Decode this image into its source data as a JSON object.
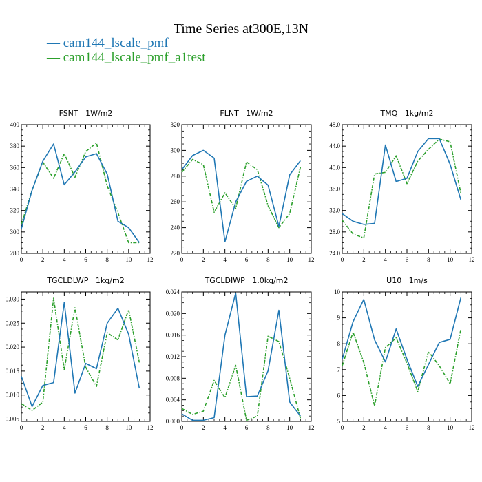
{
  "figure": {
    "title": "Time Series at300E,13N",
    "legend": [
      {
        "label": "— cam144_lscale_pmf",
        "color": "#1f77b4"
      },
      {
        "label": "— cam144_lscale_pmf_a1test",
        "color": "#2ca02c"
      }
    ]
  },
  "chart_data": [
    {
      "type": "line",
      "title": "FSNT   1W/m2",
      "x": [
        0,
        1,
        2,
        3,
        4,
        5,
        6,
        7,
        8,
        9,
        10,
        11
      ],
      "xlim": [
        0,
        12
      ],
      "xticks": [
        "0",
        "2",
        "4",
        "6",
        "8",
        "10",
        "12"
      ],
      "ylim": [
        280,
        400
      ],
      "yticks": [
        "280",
        "300",
        "320",
        "340",
        "360",
        "380",
        "400"
      ],
      "series": [
        {
          "name": "cam144_lscale_pmf",
          "color": "#1f77b4",
          "values": [
            303,
            339,
            366,
            382,
            344,
            356,
            370,
            373,
            354,
            310,
            304,
            290
          ]
        },
        {
          "name": "cam144_lscale_pmf_a1test",
          "color": "#2ca02c",
          "dashed": true,
          "values": [
            307,
            339,
            365,
            350,
            373,
            351,
            375,
            383,
            343,
            318,
            290,
            290
          ]
        }
      ]
    },
    {
      "type": "line",
      "title": "FLNT   1W/m2",
      "x": [
        0,
        1,
        2,
        3,
        4,
        5,
        6,
        7,
        8,
        9,
        10,
        11
      ],
      "xlim": [
        0,
        12
      ],
      "xticks": [
        "0",
        "2",
        "4",
        "6",
        "8",
        "10",
        "12"
      ],
      "ylim": [
        220,
        320
      ],
      "yticks": [
        "220",
        "240",
        "260",
        "280",
        "300",
        "320"
      ],
      "series": [
        {
          "name": "cam144_lscale_pmf",
          "color": "#1f77b4",
          "values": [
            285,
            296,
            300,
            294,
            229,
            260,
            276,
            280,
            273,
            241,
            281,
            292
          ]
        },
        {
          "name": "cam144_lscale_pmf_a1test",
          "color": "#2ca02c",
          "dashed": true,
          "values": [
            283,
            293,
            289,
            252,
            267,
            255,
            291,
            285,
            257,
            240,
            251,
            287
          ]
        }
      ]
    },
    {
      "type": "line",
      "title": "TMQ   1kg/m2",
      "x": [
        0,
        1,
        2,
        3,
        4,
        5,
        6,
        7,
        8,
        9,
        10,
        11
      ],
      "xlim": [
        0,
        12
      ],
      "xticks": [
        "0",
        "2",
        "4",
        "6",
        "8",
        "10",
        "12"
      ],
      "ylim": [
        24,
        48
      ],
      "yticks": [
        "24.0",
        "28.0",
        "32.0",
        "36.0",
        "40.0",
        "44.0",
        "48.0"
      ],
      "series": [
        {
          "name": "cam144_lscale_pmf",
          "color": "#1f77b4",
          "values": [
            31.4,
            30.0,
            29.4,
            29.6,
            44.2,
            37.4,
            38.0,
            43.0,
            45.4,
            45.4,
            40.6,
            34.0
          ]
        },
        {
          "name": "cam144_lscale_pmf_a1test",
          "color": "#2ca02c",
          "dashed": true,
          "values": [
            30.2,
            27.6,
            26.9,
            38.8,
            39.1,
            42.2,
            37.0,
            41.2,
            43.4,
            45.3,
            44.8,
            35.2
          ]
        }
      ]
    },
    {
      "type": "line",
      "title": "TGCLDLWP   1kg/m2",
      "x": [
        0,
        1,
        2,
        3,
        4,
        5,
        6,
        7,
        8,
        9,
        10,
        11
      ],
      "xlim": [
        0,
        12
      ],
      "xticks": [
        "0",
        "2",
        "4",
        "6",
        "8",
        "10",
        "12"
      ],
      "ylim": [
        0.0045,
        0.0315
      ],
      "yticks": [
        "0.005",
        "0.010",
        "0.015",
        "0.020",
        "0.025",
        "0.030"
      ],
      "ytick_values": [
        0.005,
        0.01,
        0.015,
        0.02,
        0.025,
        0.03
      ],
      "series": [
        {
          "name": "cam144_lscale_pmf",
          "color": "#1f77b4",
          "values": [
            0.0139,
            0.0076,
            0.012,
            0.0126,
            0.0293,
            0.0104,
            0.0166,
            0.0155,
            0.025,
            0.0281,
            0.0227,
            0.0114
          ]
        },
        {
          "name": "cam144_lscale_pmf_a1test",
          "color": "#2ca02c",
          "dashed": true,
          "values": [
            0.0082,
            0.0068,
            0.0085,
            0.0302,
            0.0153,
            0.0282,
            0.0158,
            0.0118,
            0.023,
            0.0215,
            0.0278,
            0.0168
          ]
        }
      ]
    },
    {
      "type": "line",
      "title": "TGCLDIWP   1.0kg/m2",
      "x": [
        0,
        1,
        2,
        3,
        4,
        5,
        6,
        7,
        8,
        9,
        10,
        11
      ],
      "xlim": [
        0,
        12
      ],
      "xticks": [
        "0",
        "2",
        "4",
        "6",
        "8",
        "10",
        "12"
      ],
      "ylim": [
        0,
        0.024
      ],
      "yticks": [
        "0.000",
        "0.004",
        "0.008",
        "0.012",
        "0.016",
        "0.020",
        "0.024"
      ],
      "series": [
        {
          "name": "cam144_lscale_pmf",
          "color": "#1f77b4",
          "values": [
            0.0014,
            0.0002,
            0.0002,
            0.0007,
            0.016,
            0.0238,
            0.0046,
            0.0047,
            0.0094,
            0.0206,
            0.0036,
            0.001
          ]
        },
        {
          "name": "cam144_lscale_pmf_a1test",
          "color": "#2ca02c",
          "dashed": true,
          "values": [
            0.0024,
            0.0013,
            0.0019,
            0.0076,
            0.0044,
            0.0104,
            0.0002,
            0.001,
            0.0158,
            0.0148,
            0.008,
            0.0006
          ]
        }
      ]
    },
    {
      "type": "line",
      "title": "U10   1m/s",
      "x": [
        0,
        1,
        2,
        3,
        4,
        5,
        6,
        7,
        8,
        9,
        10,
        11
      ],
      "xlim": [
        0,
        12
      ],
      "xticks": [
        "0",
        "2",
        "4",
        "6",
        "8",
        "10",
        "12"
      ],
      "ylim": [
        5,
        10
      ],
      "yticks": [
        "5",
        "6",
        "7",
        "8",
        "9",
        "10"
      ],
      "series": [
        {
          "name": "cam144_lscale_pmf",
          "color": "#1f77b4",
          "values": [
            7.4,
            8.85,
            9.71,
            8.15,
            7.3,
            8.57,
            7.4,
            6.35,
            7.2,
            8.05,
            8.17,
            9.78
          ]
        },
        {
          "name": "cam144_lscale_pmf_a1test",
          "color": "#2ca02c",
          "dashed": true,
          "values": [
            7.15,
            8.45,
            7.28,
            5.6,
            7.85,
            8.23,
            7.25,
            6.15,
            7.7,
            7.15,
            6.45,
            8.57
          ]
        }
      ]
    }
  ]
}
